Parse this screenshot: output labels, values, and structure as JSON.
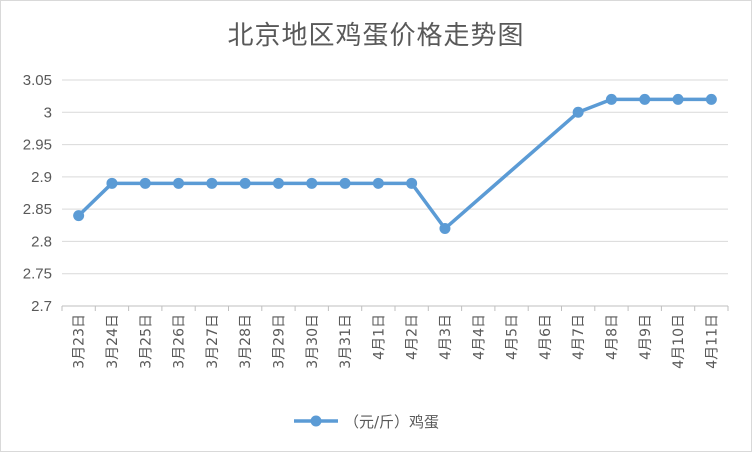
{
  "chart_data": {
    "type": "line",
    "title": "北京地区鸡蛋价格走势图",
    "xlabel": "",
    "ylabel": "",
    "categories": [
      "3月23日",
      "3月24日",
      "3月25日",
      "3月26日",
      "3月27日",
      "3月28日",
      "3月29日",
      "3月30日",
      "3月31日",
      "4月1日",
      "4月2日",
      "4月3日",
      "4月4日",
      "4月5日",
      "4月6日",
      "4月7日",
      "4月8日",
      "4月9日",
      "4月10日",
      "4月11日"
    ],
    "series": [
      {
        "name": "（元/斤）鸡蛋",
        "color": "#5b9bd5",
        "values": [
          2.84,
          2.89,
          2.89,
          2.89,
          2.89,
          2.89,
          2.89,
          2.89,
          2.89,
          2.89,
          2.89,
          2.82,
          null,
          null,
          null,
          3.0,
          3.02,
          3.02,
          3.02,
          3.02
        ]
      }
    ],
    "ylim": [
      2.7,
      3.05
    ],
    "yticks": [
      "2.7",
      "2.75",
      "2.8",
      "2.85",
      "2.9",
      "2.95",
      "3",
      "3.05"
    ],
    "grid": true,
    "legend": "bottom"
  }
}
